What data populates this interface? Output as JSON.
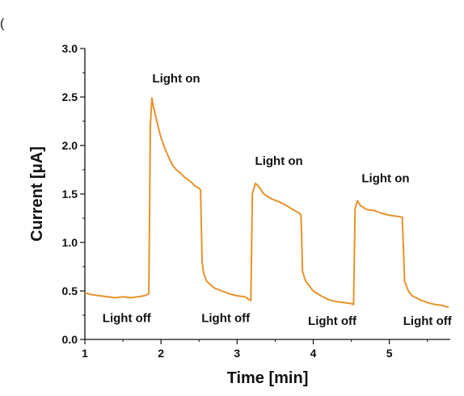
{
  "panel_label": "(",
  "chart_data": {
    "type": "line",
    "title": "",
    "xlabel": "Time [min]",
    "ylabel": "Current [μA]",
    "xlim": [
      1.0,
      5.8
    ],
    "ylim": [
      0.0,
      3.0
    ],
    "xticks": [
      1,
      2,
      3,
      4,
      5
    ],
    "xtick_labels": [
      "1",
      "2",
      "3",
      "4",
      "5"
    ],
    "yticks": [
      0.0,
      0.5,
      1.0,
      1.5,
      2.0,
      2.5,
      3.0
    ],
    "ytick_labels": [
      "0.0",
      "0.5",
      "1.0",
      "1.5",
      "2.0",
      "2.5",
      "3.0"
    ],
    "grid": false,
    "legend": "none",
    "series": [
      {
        "color": "#e8922a",
        "points": [
          [
            1.0,
            0.48
          ],
          [
            1.1,
            0.46
          ],
          [
            1.2,
            0.45
          ],
          [
            1.3,
            0.44
          ],
          [
            1.4,
            0.43
          ],
          [
            1.5,
            0.44
          ],
          [
            1.6,
            0.43
          ],
          [
            1.7,
            0.44
          ],
          [
            1.78,
            0.45
          ],
          [
            1.84,
            0.47
          ],
          [
            1.86,
            2.2
          ],
          [
            1.88,
            2.49
          ],
          [
            1.9,
            2.4
          ],
          [
            1.93,
            2.3
          ],
          [
            1.96,
            2.2
          ],
          [
            2.0,
            2.08
          ],
          [
            2.05,
            1.97
          ],
          [
            2.1,
            1.88
          ],
          [
            2.15,
            1.8
          ],
          [
            2.2,
            1.75
          ],
          [
            2.25,
            1.72
          ],
          [
            2.3,
            1.68
          ],
          [
            2.35,
            1.65
          ],
          [
            2.4,
            1.62
          ],
          [
            2.45,
            1.58
          ],
          [
            2.5,
            1.56
          ],
          [
            2.52,
            1.54
          ],
          [
            2.54,
            0.8
          ],
          [
            2.56,
            0.68
          ],
          [
            2.6,
            0.6
          ],
          [
            2.7,
            0.53
          ],
          [
            2.8,
            0.5
          ],
          [
            2.9,
            0.47
          ],
          [
            3.0,
            0.45
          ],
          [
            3.1,
            0.44
          ],
          [
            3.18,
            0.4
          ],
          [
            3.2,
            1.5
          ],
          [
            3.24,
            1.61
          ],
          [
            3.28,
            1.58
          ],
          [
            3.35,
            1.5
          ],
          [
            3.45,
            1.45
          ],
          [
            3.55,
            1.42
          ],
          [
            3.65,
            1.38
          ],
          [
            3.75,
            1.33
          ],
          [
            3.82,
            1.3
          ],
          [
            3.84,
            1.28
          ],
          [
            3.86,
            0.7
          ],
          [
            3.9,
            0.6
          ],
          [
            4.0,
            0.5
          ],
          [
            4.1,
            0.45
          ],
          [
            4.2,
            0.41
          ],
          [
            4.3,
            0.39
          ],
          [
            4.4,
            0.38
          ],
          [
            4.5,
            0.37
          ],
          [
            4.53,
            0.36
          ],
          [
            4.55,
            1.35
          ],
          [
            4.58,
            1.43
          ],
          [
            4.62,
            1.38
          ],
          [
            4.7,
            1.34
          ],
          [
            4.8,
            1.33
          ],
          [
            4.9,
            1.3
          ],
          [
            5.0,
            1.28
          ],
          [
            5.1,
            1.27
          ],
          [
            5.17,
            1.26
          ],
          [
            5.2,
            0.6
          ],
          [
            5.25,
            0.5
          ],
          [
            5.3,
            0.45
          ],
          [
            5.4,
            0.41
          ],
          [
            5.5,
            0.38
          ],
          [
            5.6,
            0.36
          ],
          [
            5.7,
            0.35
          ],
          [
            5.78,
            0.33
          ]
        ]
      }
    ],
    "annotations": [
      {
        "text": "Light on",
        "x": 2.2,
        "y": 2.65
      },
      {
        "text": "Light on",
        "x": 3.55,
        "y": 1.8
      },
      {
        "text": "Light on",
        "x": 4.95,
        "y": 1.62
      },
      {
        "text": "Light off",
        "x": 1.55,
        "y": 0.18
      },
      {
        "text": "Light off",
        "x": 2.85,
        "y": 0.18
      },
      {
        "text": "Light off",
        "x": 4.25,
        "y": 0.15
      },
      {
        "text": "Light off",
        "x": 5.5,
        "y": 0.15
      }
    ]
  }
}
